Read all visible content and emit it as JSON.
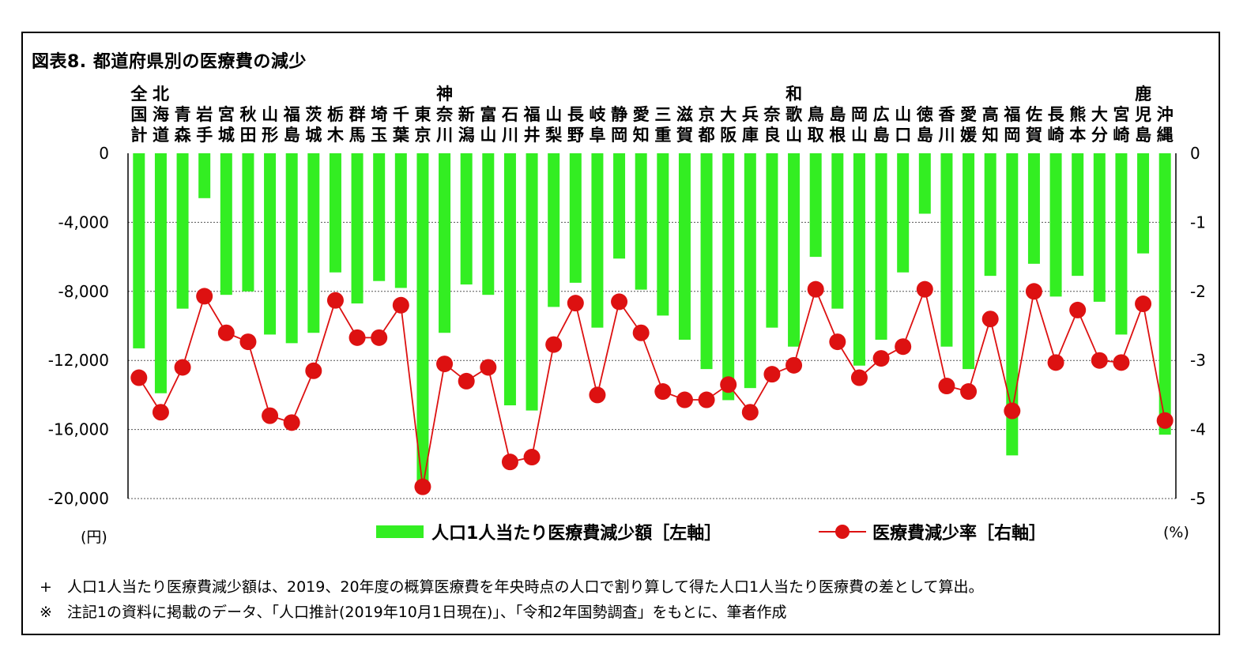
{
  "title": "図表8. 都道府県別の医療費の減少",
  "notes": [
    "+　人口1人当たり医療費減少額は、2019、20年度の概算医療費を年央時点の人口で割り算して得た人口1人当たり医療費の差として算出。",
    "※　注記1の資料に掲載のデータ、「人口推計(2019年10月1日現在)」、「令和2年国勢調査」をもとに、筆者作成"
  ],
  "colors": {
    "bar": "#33ee22",
    "line": "#dd1111",
    "grid": "#555555"
  },
  "chart_data": {
    "type": "bar",
    "categories": [
      "全国計",
      "北海道",
      "青森",
      "岩手",
      "宮城",
      "秋田",
      "山形",
      "福島",
      "茨城",
      "栃木",
      "群馬",
      "埼玉",
      "千葉",
      "東京",
      "神奈川",
      "新潟",
      "富山",
      "石川",
      "福井",
      "山梨",
      "長野",
      "岐阜",
      "静岡",
      "愛知",
      "三重",
      "滋賀",
      "京都",
      "大阪",
      "兵庫",
      "奈良",
      "和歌山",
      "鳥取",
      "島根",
      "岡山",
      "広島",
      "山口",
      "徳島",
      "香川",
      "愛媛",
      "高知",
      "福岡",
      "佐賀",
      "長崎",
      "熊本",
      "大分",
      "宮崎",
      "鹿児島",
      "沖縄"
    ],
    "category_label_lines": [
      [
        "全",
        "国",
        "計"
      ],
      [
        "北",
        "海",
        "道"
      ],
      [
        "",
        "青",
        "森"
      ],
      [
        "",
        "岩",
        "手"
      ],
      [
        "",
        "宮",
        "城"
      ],
      [
        "",
        "秋",
        "田"
      ],
      [
        "",
        "山",
        "形"
      ],
      [
        "",
        "福",
        "島"
      ],
      [
        "",
        "茨",
        "城"
      ],
      [
        "",
        "栃",
        "木"
      ],
      [
        "",
        "群",
        "馬"
      ],
      [
        "",
        "埼",
        "玉"
      ],
      [
        "",
        "千",
        "葉"
      ],
      [
        "",
        "東",
        "京"
      ],
      [
        "神",
        "奈",
        "川"
      ],
      [
        "",
        "新",
        "潟"
      ],
      [
        "",
        "富",
        "山"
      ],
      [
        "",
        "石",
        "川"
      ],
      [
        "",
        "福",
        "井"
      ],
      [
        "",
        "山",
        "梨"
      ],
      [
        "",
        "長",
        "野"
      ],
      [
        "",
        "岐",
        "阜"
      ],
      [
        "",
        "静",
        "岡"
      ],
      [
        "",
        "愛",
        "知"
      ],
      [
        "",
        "三",
        "重"
      ],
      [
        "",
        "滋",
        "賀"
      ],
      [
        "",
        "京",
        "都"
      ],
      [
        "",
        "大",
        "阪"
      ],
      [
        "",
        "兵",
        "庫"
      ],
      [
        "",
        "奈",
        "良"
      ],
      [
        "和",
        "歌",
        "山"
      ],
      [
        "",
        "鳥",
        "取"
      ],
      [
        "",
        "島",
        "根"
      ],
      [
        "",
        "岡",
        "山"
      ],
      [
        "",
        "広",
        "島"
      ],
      [
        "",
        "山",
        "口"
      ],
      [
        "",
        "徳",
        "島"
      ],
      [
        "",
        "香",
        "川"
      ],
      [
        "",
        "愛",
        "媛"
      ],
      [
        "",
        "高",
        "知"
      ],
      [
        "",
        "福",
        "岡"
      ],
      [
        "",
        "佐",
        "賀"
      ],
      [
        "",
        "長",
        "崎"
      ],
      [
        "",
        "熊",
        "本"
      ],
      [
        "",
        "大",
        "分"
      ],
      [
        "",
        "宮",
        "崎"
      ],
      [
        "鹿",
        "児",
        "島"
      ],
      [
        "",
        "沖",
        "縄"
      ]
    ],
    "series": [
      {
        "name": "人口1人当たり医療費減少額［左軸］",
        "type": "bar",
        "axis": "left",
        "values": [
          -11300,
          -13900,
          -9000,
          -2600,
          -8200,
          -8000,
          -10500,
          -11000,
          -10400,
          -6900,
          -8700,
          -7400,
          -7800,
          -19000,
          -10400,
          -7600,
          -8200,
          -14600,
          -14900,
          -8900,
          -7500,
          -10100,
          -6100,
          -7900,
          -9400,
          -10800,
          -12500,
          -14300,
          -13600,
          -10100,
          -11200,
          -6000,
          -9000,
          -12300,
          -10800,
          -6900,
          -3500,
          -11200,
          -12500,
          -7100,
          -17500,
          -6400,
          -8300,
          -7100,
          -8600,
          -10500,
          -5800,
          -16300
        ]
      },
      {
        "name": "医療費減少率［右軸］",
        "type": "line",
        "axis": "right",
        "values": [
          -3.25,
          -3.75,
          -3.1,
          -2.07,
          -2.6,
          -2.73,
          -3.8,
          -3.9,
          -3.15,
          -2.13,
          -2.67,
          -2.67,
          -2.2,
          -4.83,
          -3.05,
          -3.3,
          -3.1,
          -4.47,
          -4.4,
          -2.77,
          -2.17,
          -3.5,
          -2.15,
          -2.6,
          -3.45,
          -3.57,
          -3.57,
          -3.35,
          -3.75,
          -3.2,
          -3.07,
          -1.97,
          -2.73,
          -3.25,
          -2.97,
          -2.8,
          -1.97,
          -3.37,
          -3.45,
          -2.4,
          -3.73,
          -2,
          -3.03,
          -2.27,
          -3,
          -3.03,
          -2.18,
          -3.87
        ]
      }
    ],
    "left_axis": {
      "ylim": [
        -20000,
        0
      ],
      "ticks": [
        "0",
        "-4,000",
        "-8,000",
        "-12,000",
        "-16,000",
        "-20,000"
      ],
      "unit": "(円)"
    },
    "right_axis": {
      "ylim": [
        -5,
        0
      ],
      "ticks": [
        "0",
        "-1",
        "-2",
        "-3",
        "-4",
        "-5"
      ],
      "unit": "(%)"
    },
    "grid": true,
    "legend_position": "bottom"
  }
}
